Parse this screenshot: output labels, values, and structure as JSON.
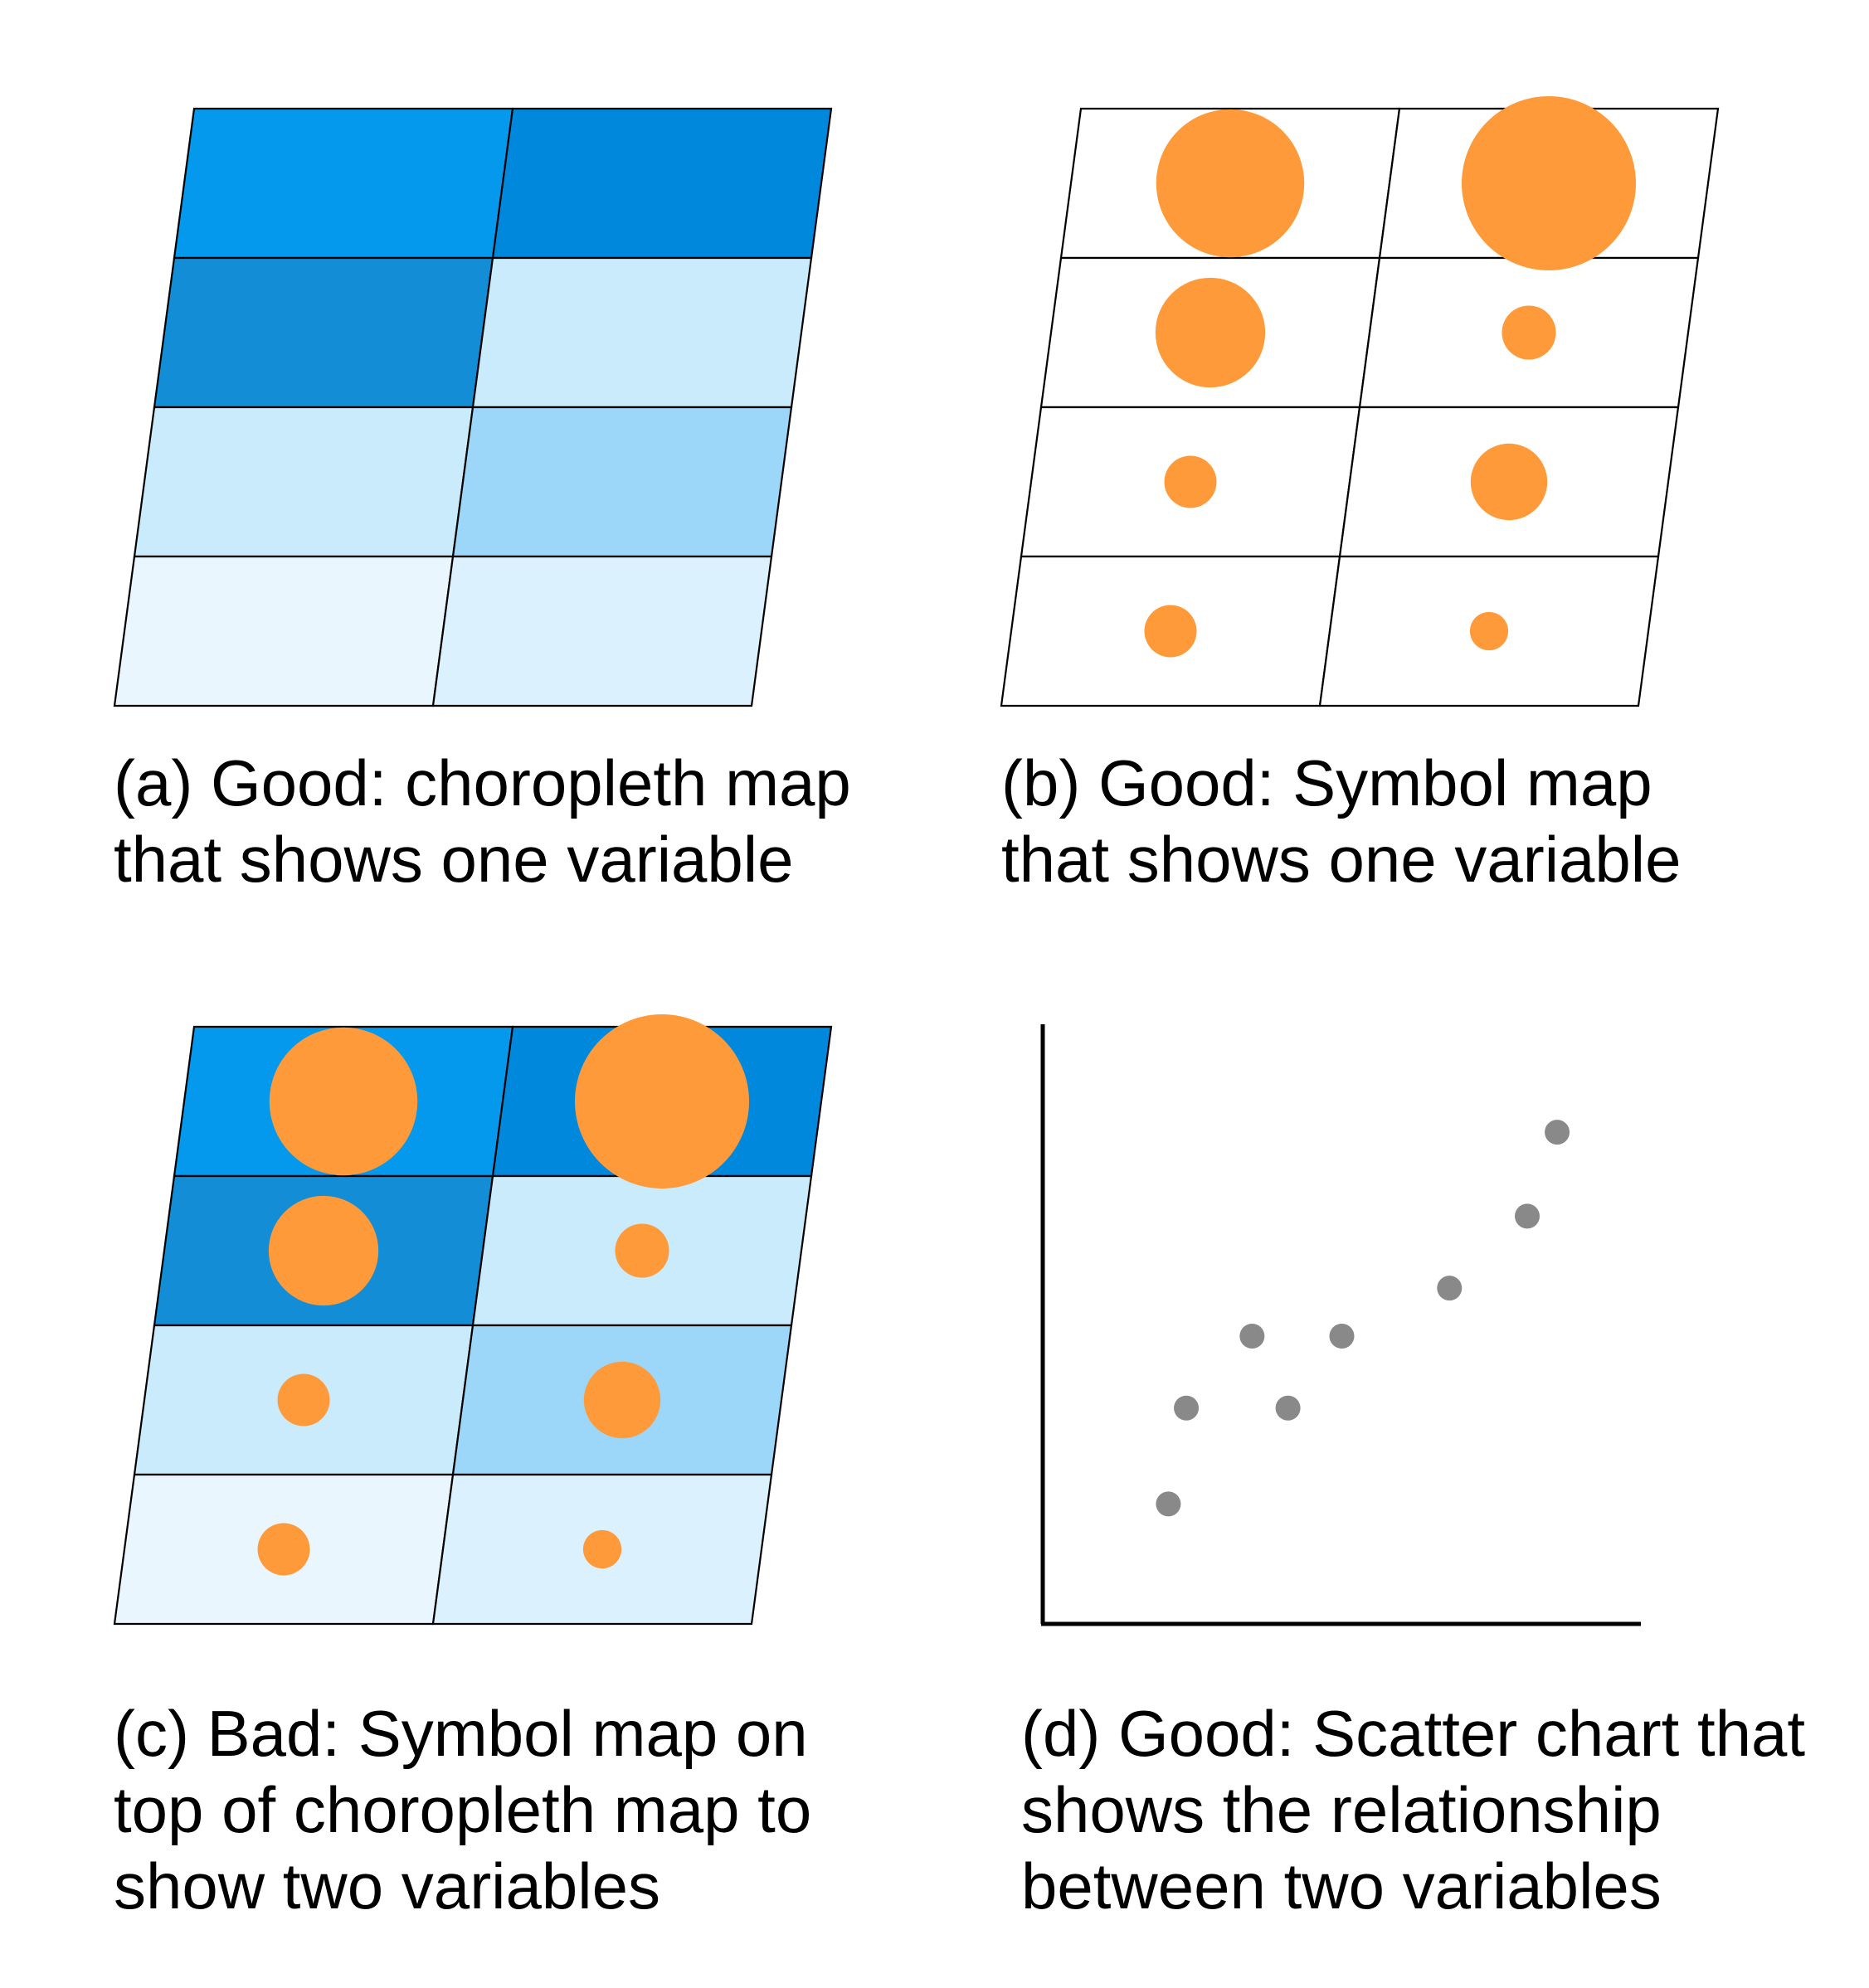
{
  "colors": {
    "choropleth_levels": [
      "#0499ec",
      "#0089dc",
      "#138ed6",
      "#c9ebfc",
      "#9cd6f8",
      "#dbf1fd",
      "#eaf6fe"
    ],
    "symbol": "#ff9a3a",
    "scatter_point": "#898989",
    "grid_line": "#000000",
    "axis": "#000000"
  },
  "panels": [
    {
      "id": "a",
      "caption_lines": [
        "(a) Good: choropleth map",
        "that shows one variable"
      ],
      "kind": "choropleth",
      "cells": [
        {
          "row": 0,
          "col": 0,
          "fill": "#0499ec"
        },
        {
          "row": 0,
          "col": 1,
          "fill": "#0089dc"
        },
        {
          "row": 1,
          "col": 0,
          "fill": "#138ed6"
        },
        {
          "row": 1,
          "col": 1,
          "fill": "#c9ebfc"
        },
        {
          "row": 2,
          "col": 0,
          "fill": "#c9ebfc"
        },
        {
          "row": 2,
          "col": 1,
          "fill": "#9cd6f8"
        },
        {
          "row": 3,
          "col": 0,
          "fill": "#eaf6fe"
        },
        {
          "row": 3,
          "col": 1,
          "fill": "#dbf1fd"
        }
      ]
    },
    {
      "id": "b",
      "caption_lines": [
        "(b) Good: Symbol map",
        "that shows one variable"
      ],
      "kind": "symbol",
      "symbol_values": [
        {
          "row": 0,
          "col": 0,
          "size": 0.85
        },
        {
          "row": 0,
          "col": 1,
          "size": 1.0
        },
        {
          "row": 1,
          "col": 0,
          "size": 0.63
        },
        {
          "row": 1,
          "col": 1,
          "size": 0.31
        },
        {
          "row": 2,
          "col": 0,
          "size": 0.3
        },
        {
          "row": 2,
          "col": 1,
          "size": 0.44
        },
        {
          "row": 3,
          "col": 0,
          "size": 0.3
        },
        {
          "row": 3,
          "col": 1,
          "size": 0.22
        }
      ]
    },
    {
      "id": "c",
      "caption_lines": [
        "(c) Bad: Symbol map on",
        "top of choropleth map to",
        "show two variables"
      ],
      "kind": "choropleth+symbol"
    },
    {
      "id": "d",
      "caption_lines": [
        "(d) Good: Scatter chart that",
        "shows the relationship",
        "between two variables"
      ],
      "kind": "scatter"
    }
  ],
  "chart_data": {
    "type": "scatter",
    "title": "",
    "xlabel": "",
    "ylabel": "",
    "xlim": [
      0,
      10
    ],
    "ylim": [
      0,
      10
    ],
    "grid": false,
    "points": [
      {
        "x": 2.1,
        "y": 2.0
      },
      {
        "x": 2.4,
        "y": 3.6
      },
      {
        "x": 3.5,
        "y": 4.8
      },
      {
        "x": 4.1,
        "y": 3.6
      },
      {
        "x": 5.0,
        "y": 4.8
      },
      {
        "x": 6.8,
        "y": 5.6
      },
      {
        "x": 8.1,
        "y": 6.8
      },
      {
        "x": 8.6,
        "y": 8.2
      }
    ]
  }
}
